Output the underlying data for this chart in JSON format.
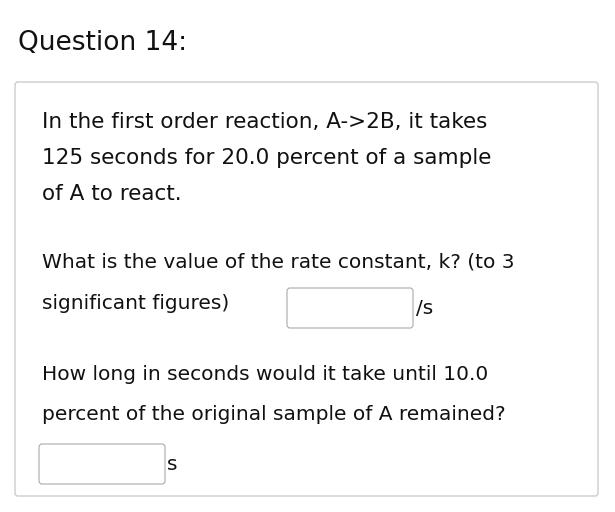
{
  "title": "Question 14:",
  "title_fontsize": 19,
  "bg_color": "#ffffff",
  "box_edge_color": "#cccccc",
  "text_color": "#111111",
  "body_fontsize_large": 15.5,
  "body_fontsize": 14.5,
  "line1": "In the first order reaction, A->2B, it takes",
  "line2": "125 seconds for 20.0 percent of a sample",
  "line3": "of A to react.",
  "line4": "What is the value of the rate constant, k? (to 3",
  "line5": "significant figures)",
  "line5_unit": "/s",
  "line6": "How long in seconds would it take until 10.0",
  "line7": "percent of the original sample of A remained?",
  "line8_unit": "s"
}
